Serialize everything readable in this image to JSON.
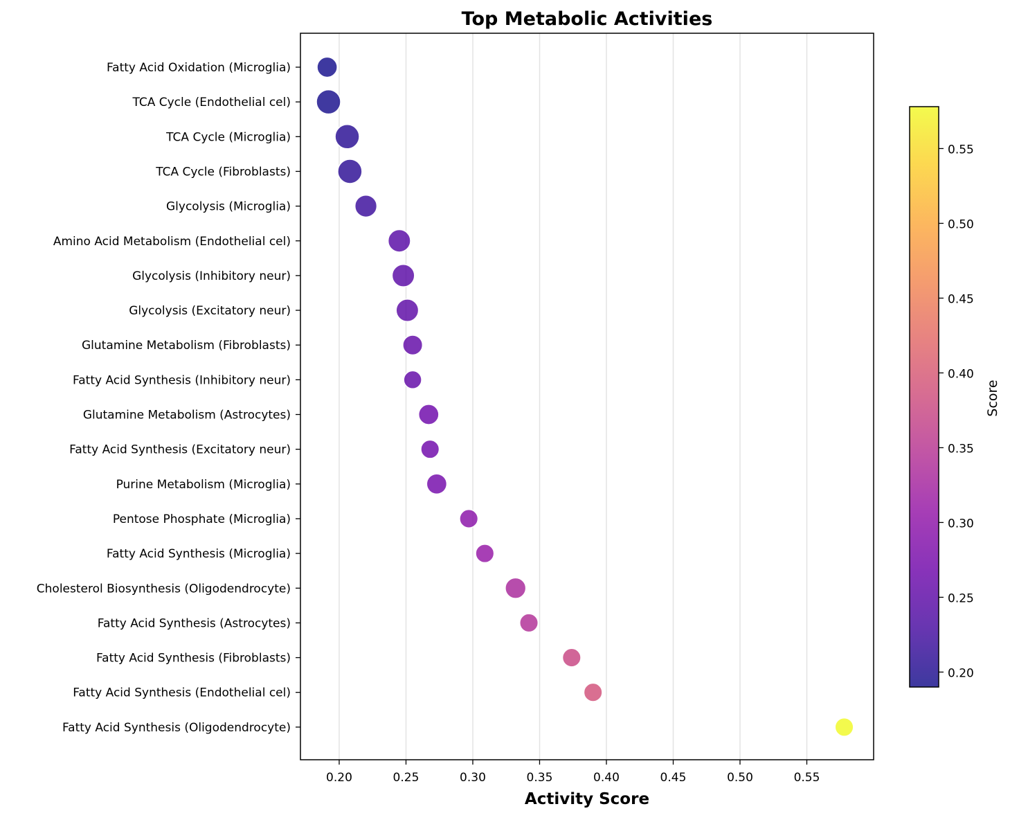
{
  "chart_data": {
    "type": "scatter",
    "title": "Top Metabolic Activities",
    "xlabel": "Activity Score",
    "ylabel": "",
    "xlim": [
      0.171,
      0.6
    ],
    "xticks": [
      "0.20",
      "0.25",
      "0.30",
      "0.35",
      "0.40",
      "0.45",
      "0.50",
      "0.55"
    ],
    "grid": "vertical",
    "colormap": "plasma",
    "colorbar": {
      "label": "Score",
      "range": [
        0.19,
        0.578
      ],
      "ticks": [
        "0.20",
        "0.25",
        "0.30",
        "0.35",
        "0.40",
        "0.45",
        "0.50",
        "0.55"
      ]
    },
    "points": [
      {
        "label": "Fatty Acid Oxidation (Microglia)",
        "x": 0.191,
        "size": 0.55
      },
      {
        "label": "TCA Cycle (Endothelial cel)",
        "x": 0.192,
        "size": 1.0
      },
      {
        "label": "TCA Cycle (Microglia)",
        "x": 0.206,
        "size": 1.0
      },
      {
        "label": "TCA Cycle (Fibroblasts)",
        "x": 0.208,
        "size": 1.0
      },
      {
        "label": "Glycolysis (Microglia)",
        "x": 0.22,
        "size": 0.75
      },
      {
        "label": "Amino Acid Metabolism (Endothelial cel)",
        "x": 0.245,
        "size": 0.8
      },
      {
        "label": "Glycolysis (Inhibitory neur)",
        "x": 0.248,
        "size": 0.8
      },
      {
        "label": "Glycolysis (Excitatory neur)",
        "x": 0.251,
        "size": 0.8
      },
      {
        "label": "Glutamine Metabolism (Fibroblasts)",
        "x": 0.255,
        "size": 0.5
      },
      {
        "label": "Fatty Acid Synthesis (Inhibitory neur)",
        "x": 0.255,
        "size": 0.3
      },
      {
        "label": "Glutamine Metabolism (Astrocytes)",
        "x": 0.267,
        "size": 0.55
      },
      {
        "label": "Fatty Acid Synthesis (Excitatory neur)",
        "x": 0.268,
        "size": 0.35
      },
      {
        "label": "Purine Metabolism (Microglia)",
        "x": 0.273,
        "size": 0.55
      },
      {
        "label": "Pentose Phosphate (Microglia)",
        "x": 0.297,
        "size": 0.35
      },
      {
        "label": "Fatty Acid Synthesis (Microglia)",
        "x": 0.309,
        "size": 0.35
      },
      {
        "label": "Cholesterol Biosynthesis (Oligodendrocyte)",
        "x": 0.332,
        "size": 0.6
      },
      {
        "label": "Fatty Acid Synthesis (Astrocytes)",
        "x": 0.342,
        "size": 0.35
      },
      {
        "label": "Fatty Acid Synthesis (Fibroblasts)",
        "x": 0.374,
        "size": 0.35
      },
      {
        "label": "Fatty Acid Synthesis (Endothelial cel)",
        "x": 0.39,
        "size": 0.35
      },
      {
        "label": "Fatty Acid Synthesis (Oligodendrocyte)",
        "x": 0.578,
        "size": 0.35
      }
    ]
  }
}
